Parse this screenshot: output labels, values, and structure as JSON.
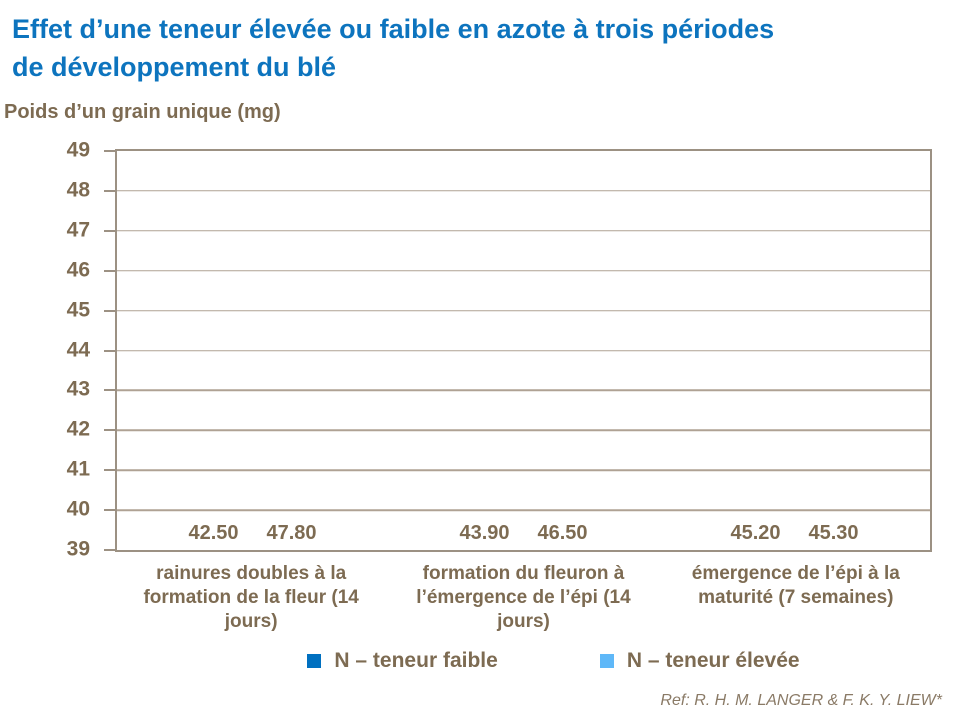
{
  "slide": {
    "title_line1": "Effet d’une teneur élevée ou faible en azote à trois périodes",
    "title_line2": "de développement du blé",
    "y_axis_title": "Poids d’un grain unique (mg)",
    "reference": "Ref: R. H. M. LANGER & F. K. Y. LIEW*"
  },
  "chart_data": {
    "type": "bar",
    "title": "Effet d’une teneur élevée ou faible en azote à trois périodes de développement du blé",
    "ylabel": "Poids d’un grain unique (mg)",
    "xlabel": "",
    "categories": [
      "rainures doubles à la formation de la fleur (14 jours)",
      "formation du fleuron à l’émergence de l’épi (14 jours)",
      "émergence de l’épi à la maturité (7 semaines)"
    ],
    "series": [
      {
        "name": "N – teneur faible",
        "color": "#0070C0",
        "values": [
          42.5,
          43.9,
          45.2
        ]
      },
      {
        "name": "N – teneur élevée",
        "color": "#5FB8F8",
        "values": [
          47.8,
          46.5,
          45.3
        ]
      }
    ],
    "ylim": [
      39,
      49
    ],
    "ytick_step": 1,
    "grid": true,
    "legend_position": "bottom",
    "value_label_decimals": 2
  },
  "colors": {
    "title": "#0D74BE",
    "text_brown": "#7D6B52",
    "grid": "#AFA294",
    "border": "#9C9183",
    "reference_text": "#8A7A66"
  }
}
